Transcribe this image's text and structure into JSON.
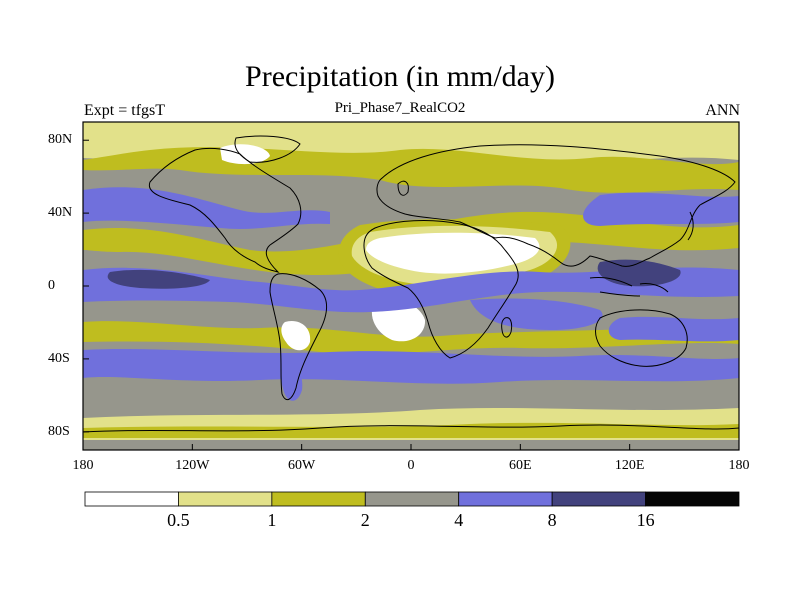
{
  "title": "Precipitation (in mm/day)",
  "subtitle": "Pri_Phase7_RealCO2",
  "left_string": "Expt = tfgsT",
  "right_string": "ANN",
  "colors": {
    "lt0_5": "#ffffff",
    "c0_5_1": "#e2e18a",
    "c1_2": "#bfbd1f",
    "c2_4": "#96968c",
    "c4_8": "#7070dc",
    "c8_16": "#42427d",
    "gt16": "#050505",
    "coast": "#000000"
  },
  "chart_data": {
    "type": "heatmap",
    "title": "Precipitation (in mm/day)",
    "subtitle": "Pri_Phase7_RealCO2",
    "projection": "cylindrical-equidistant",
    "xlim": [
      -180,
      180
    ],
    "ylim": [
      -90,
      90
    ],
    "x_ticks": [
      {
        "value": -180,
        "label": "180"
      },
      {
        "value": -120,
        "label": "120W"
      },
      {
        "value": -60,
        "label": "60W"
      },
      {
        "value": 0,
        "label": "0"
      },
      {
        "value": 60,
        "label": "60E"
      },
      {
        "value": 120,
        "label": "120E"
      },
      {
        "value": 180,
        "label": "180"
      }
    ],
    "y_ticks": [
      {
        "value": 80,
        "label": "80N"
      },
      {
        "value": 40,
        "label": "40N"
      },
      {
        "value": 0,
        "label": "0"
      },
      {
        "value": -40,
        "label": "40S"
      },
      {
        "value": -80,
        "label": "80S"
      }
    ],
    "colorbar": {
      "levels": [
        0.5,
        1,
        2,
        4,
        8,
        16
      ],
      "labels": [
        "0.5",
        "1",
        "2",
        "4",
        "8",
        "16"
      ],
      "colors": [
        "#ffffff",
        "#e2e18a",
        "#bfbd1f",
        "#96968c",
        "#7070dc",
        "#42427d",
        "#050505"
      ]
    }
  }
}
